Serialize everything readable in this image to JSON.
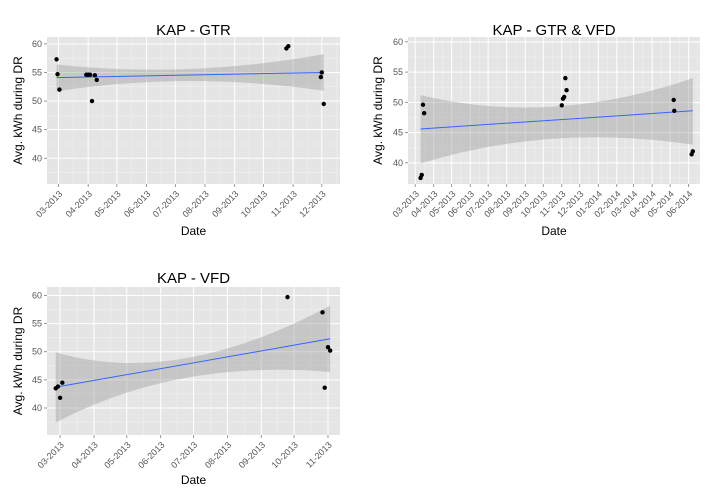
{
  "chart_data": [
    {
      "type": "scatter",
      "title": "KAP -   GTR",
      "xlabel": "Date",
      "ylabel": "Avg. kWh during DR",
      "x_ticks": [
        "03-2013",
        "04-2013",
        "05-2013",
        "06-2013",
        "07-2013",
        "08-2013",
        "09-2013",
        "10-2013",
        "11-2013",
        "12-2013"
      ],
      "y_ticks": [
        40,
        45,
        50,
        55,
        60
      ],
      "xlim": [
        "2013-02-17",
        "2013-12-20"
      ],
      "ylim": [
        35.5,
        61.2
      ],
      "grid": true,
      "points": [
        {
          "x": "2013-02-27",
          "y": 57.3
        },
        {
          "x": "2013-02-28",
          "y": 54.7
        },
        {
          "x": "2013-03-02",
          "y": 52.0
        },
        {
          "x": "2013-03-30",
          "y": 54.6
        },
        {
          "x": "2013-04-01",
          "y": 54.6
        },
        {
          "x": "2013-04-03",
          "y": 54.6
        },
        {
          "x": "2013-04-05",
          "y": 50.0
        },
        {
          "x": "2013-04-08",
          "y": 54.5
        },
        {
          "x": "2013-04-10",
          "y": 53.7
        },
        {
          "x": "2013-10-25",
          "y": 59.2
        },
        {
          "x": "2013-10-27",
          "y": 59.6
        },
        {
          "x": "2013-11-30",
          "y": 54.2
        },
        {
          "x": "2013-12-01",
          "y": 55.0
        },
        {
          "x": "2013-12-03",
          "y": 49.5
        }
      ],
      "trend": {
        "start": [
          "2013-02-27",
          54.1
        ],
        "end": [
          "2013-12-03",
          55.0
        ]
      },
      "band_upper": [
        [
          "2013-02-27",
          56.4
        ],
        [
          "2013-07-15",
          55.6
        ],
        [
          "2013-12-03",
          58.2
        ]
      ],
      "band_lower": [
        [
          "2013-02-27",
          51.7
        ],
        [
          "2013-07-15",
          53.5
        ],
        [
          "2013-12-03",
          51.8
        ]
      ],
      "colors": {
        "points": "#000000",
        "trend": "#3366ff",
        "band": "#999999"
      }
    },
    {
      "type": "scatter",
      "title": "KAP -   GTR & VFD",
      "xlabel": "Date",
      "ylabel": "Avg. kWh during DR",
      "x_ticks": [
        "03-2013",
        "04-2013",
        "05-2013",
        "06-2013",
        "07-2013",
        "08-2013",
        "09-2013",
        "10-2013",
        "11-2013",
        "12-2013",
        "01-2014",
        "02-2014",
        "03-2014",
        "04-2014",
        "05-2014",
        "06-2014"
      ],
      "y_ticks": [
        40,
        45,
        50,
        55,
        60
      ],
      "xlim": [
        "2013-02-17",
        "2014-06-20"
      ],
      "ylim": [
        36.5,
        60.8
      ],
      "grid": true,
      "points": [
        {
          "x": "2013-03-10",
          "y": 37.5
        },
        {
          "x": "2013-03-12",
          "y": 38.0
        },
        {
          "x": "2013-03-14",
          "y": 49.6
        },
        {
          "x": "2013-03-16",
          "y": 48.2
        },
        {
          "x": "2013-11-01",
          "y": 49.5
        },
        {
          "x": "2013-11-03",
          "y": 50.6
        },
        {
          "x": "2013-11-05",
          "y": 50.9
        },
        {
          "x": "2013-11-07",
          "y": 54.0
        },
        {
          "x": "2013-11-09",
          "y": 52.0
        },
        {
          "x": "2014-05-07",
          "y": 50.4
        },
        {
          "x": "2014-05-08",
          "y": 48.6
        },
        {
          "x": "2014-06-06",
          "y": 41.4
        },
        {
          "x": "2014-06-08",
          "y": 41.9
        }
      ],
      "trend": {
        "start": [
          "2013-03-10",
          45.6
        ],
        "end": [
          "2014-06-08",
          48.6
        ]
      },
      "band_upper": [
        [
          "2013-03-10",
          51.2
        ],
        [
          "2013-10-15",
          49.3
        ],
        [
          "2014-06-08",
          54.0
        ]
      ],
      "band_lower": [
        [
          "2013-03-10",
          39.9
        ],
        [
          "2013-10-15",
          44.0
        ],
        [
          "2014-06-08",
          43.0
        ]
      ],
      "colors": {
        "points": "#000000",
        "trend": "#3366ff",
        "band": "#999999"
      }
    },
    {
      "type": "scatter",
      "title": "KAP -   VFD",
      "xlabel": "Date",
      "ylabel": "Avg. kWh during DR",
      "x_ticks": [
        "03-2013",
        "04-2013",
        "05-2013",
        "06-2013",
        "07-2013",
        "08-2013",
        "09-2013",
        "10-2013",
        "11-2013"
      ],
      "y_ticks": [
        40,
        45,
        50,
        55,
        60
      ],
      "xlim": [
        "2013-02-17",
        "2013-11-12"
      ],
      "ylim": [
        35.2,
        61.5
      ],
      "grid": true,
      "points": [
        {
          "x": "2013-02-25",
          "y": 43.5
        },
        {
          "x": "2013-02-27",
          "y": 43.8
        },
        {
          "x": "2013-03-01",
          "y": 41.8
        },
        {
          "x": "2013-03-03",
          "y": 44.5
        },
        {
          "x": "2013-09-25",
          "y": 59.7
        },
        {
          "x": "2013-10-27",
          "y": 57.0
        },
        {
          "x": "2013-10-29",
          "y": 43.6
        },
        {
          "x": "2013-11-01",
          "y": 50.8
        },
        {
          "x": "2013-11-03",
          "y": 50.2
        }
      ],
      "trend": {
        "start": [
          "2013-02-25",
          43.7
        ],
        "end": [
          "2013-11-03",
          52.3
        ]
      },
      "band_upper": [
        [
          "2013-02-25",
          49.9
        ],
        [
          "2013-06-15",
          48.8
        ],
        [
          "2013-11-03",
          58.2
        ]
      ],
      "band_lower": [
        [
          "2013-02-25",
          37.4
        ],
        [
          "2013-06-15",
          45.3
        ],
        [
          "2013-11-03",
          46.4
        ]
      ],
      "colors": {
        "points": "#000000",
        "trend": "#3366ff",
        "band": "#999999"
      }
    }
  ]
}
